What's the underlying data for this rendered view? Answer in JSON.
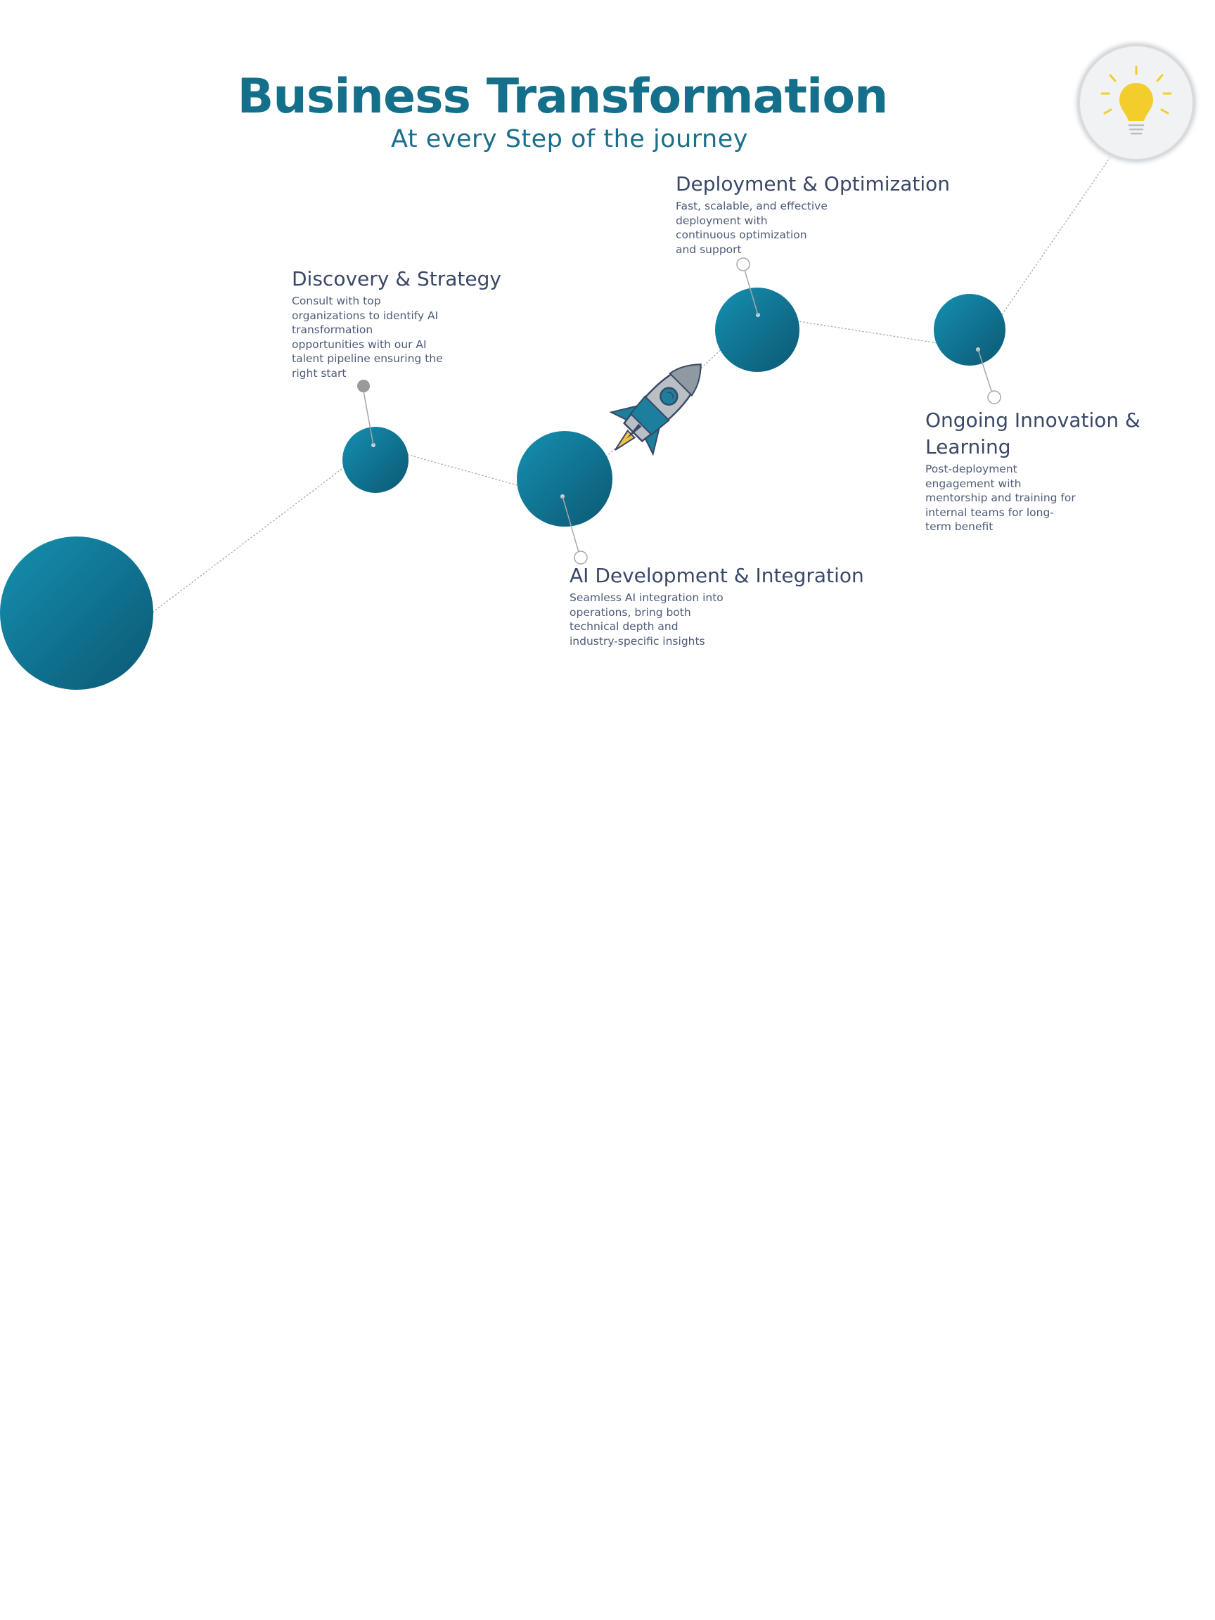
{
  "header": {
    "title": "Business Transformation",
    "subtitle": "At every Step of the journey"
  },
  "colors": {
    "title": "#146f8b",
    "subtitle": "#1b6f8a",
    "step_title": "#3a4766",
    "step_desc": "#4d5a78",
    "node_light": "#1590b0",
    "node_dark": "#0b5874",
    "connector": "#a7a7a7",
    "bulb": "#f2cd2c"
  },
  "steps": [
    {
      "id": "discovery",
      "title": "Discovery & Strategy",
      "description": [
        "Consult with top",
        "organizations to identify AI",
        "transformation",
        "opportunities with our AI",
        "talent pipeline ensuring the",
        "right start"
      ]
    },
    {
      "id": "development",
      "title": "AI Development & Integration",
      "description": [
        "Seamless AI integration into",
        "operations, bring both",
        "technical depth and",
        "industry-specific insights"
      ]
    },
    {
      "id": "deployment",
      "title": "Deployment & Optimization",
      "description": [
        "Fast, scalable, and effective",
        "deployment with",
        "continuous optimization",
        "and support"
      ]
    },
    {
      "id": "innovation",
      "title": [
        "Ongoing Innovation &",
        "Learning"
      ],
      "description": [
        "Post-deployment",
        "engagement with",
        "mentorship and training for",
        "internal teams for long-",
        "term benefit"
      ]
    }
  ],
  "icons": {
    "rocket": "rocket-icon",
    "lightbulb": "lightbulb-icon"
  }
}
